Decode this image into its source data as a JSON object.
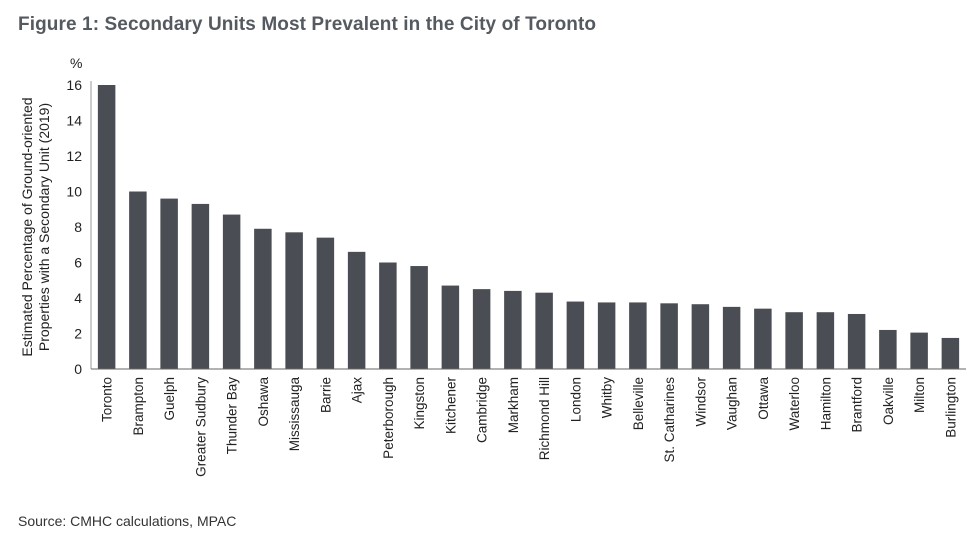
{
  "title": "Figure 1: Secondary Units Most Prevalent in the City of Toronto",
  "source": "Source: CMHC calculations, MPAC",
  "chart_data": {
    "type": "bar",
    "ylabel_lines": [
      "Estimated Percentage of Ground-oriented",
      "Properties with a Secondary Unit (2019)"
    ],
    "yunit": "%",
    "ylim": [
      0,
      16
    ],
    "yticks": [
      0,
      2,
      4,
      6,
      8,
      10,
      12,
      14,
      16
    ],
    "grid": false,
    "bar_color": "#4a4d53",
    "categories": [
      "Toronto",
      "Brampton",
      "Guelph",
      "Greater Sudbury",
      "Thunder Bay",
      "Oshawa",
      "Mississauga",
      "Barrie",
      "Ajax",
      "Peterborough",
      "Kingston",
      "Kitchener",
      "Cambridge",
      "Markham",
      "Richmond Hill",
      "London",
      "Whitby",
      "Belleville",
      "St. Catharines",
      "Windsor",
      "Vaughan",
      "Ottawa",
      "Waterloo",
      "Hamilton",
      "Brantford",
      "Oakville",
      "Milton",
      "Burlington"
    ],
    "values": [
      16.0,
      10.0,
      9.6,
      9.3,
      8.7,
      7.9,
      7.7,
      7.4,
      6.6,
      6.0,
      5.8,
      4.7,
      4.5,
      4.4,
      4.3,
      3.8,
      3.75,
      3.75,
      3.7,
      3.65,
      3.5,
      3.4,
      3.2,
      3.2,
      3.1,
      2.2,
      2.05,
      1.75
    ]
  }
}
